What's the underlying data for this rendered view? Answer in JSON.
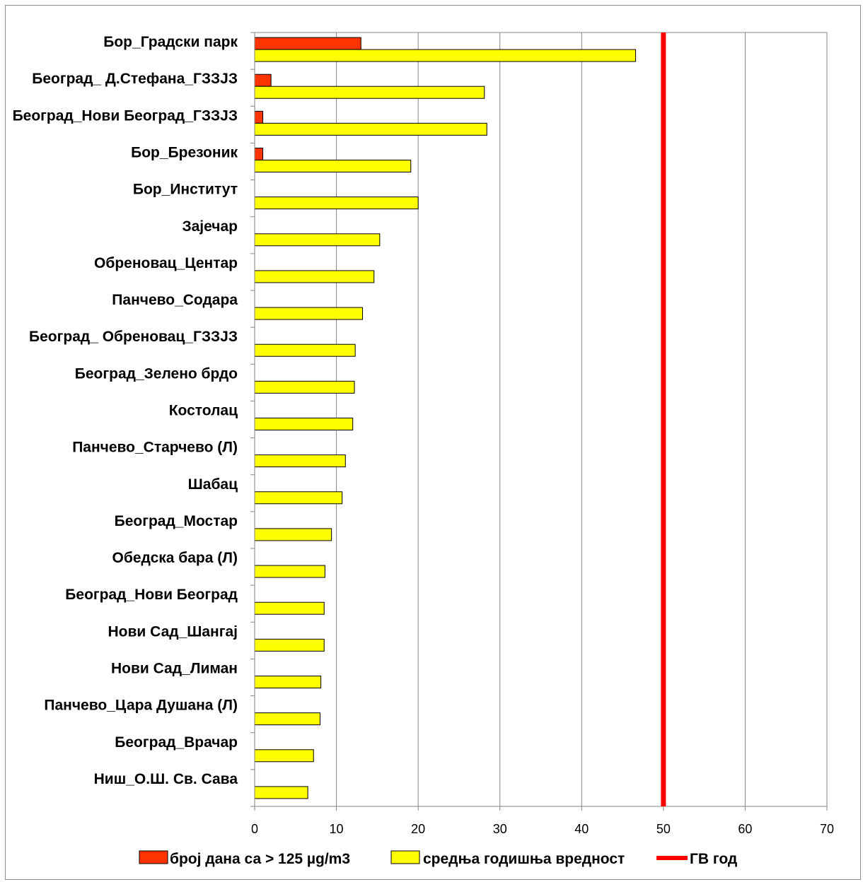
{
  "chart_data": {
    "type": "bar",
    "orientation": "horizontal",
    "categories": [
      "Бор_Градски парк",
      "Београд_ Д.Стефана_ГЗЗЈЗ",
      "Београд_Нови Београд_ГЗЗЈЗ",
      "Бор_Брезоник",
      "Бор_Институт",
      "Зајечар",
      "Обреновац_Центар",
      "Панчево_Содара",
      "Београд_ Обреновац_ГЗЗЈЗ",
      "Београд_Зелено брдо",
      "Костолац",
      "Панчево_Старчево (Л)",
      "Шабац",
      "Београд_Мостар",
      "Обедска бара (Л)",
      "Београд_Нови Београд",
      "Нови Сад_Шангај",
      "Нови Сад_Лиман",
      "Панчево_Цара Душана (Л)",
      "Београд_Врачар",
      "Ниш_О.Ш. Св. Сава"
    ],
    "series": [
      {
        "name": "број дана са  > 125 µg/m3",
        "color": "#FF3300",
        "values": [
          13,
          2,
          1,
          1,
          0,
          0,
          0,
          0,
          0,
          0,
          0,
          0,
          0,
          0,
          0,
          0,
          0,
          0,
          0,
          0,
          0
        ]
      },
      {
        "name": "средња годишња вредност",
        "color": "#FFFF00",
        "values": [
          46.6,
          28.1,
          28.4,
          19.1,
          20,
          15.3,
          14.6,
          13.2,
          12.3,
          12.2,
          12,
          11.1,
          10.7,
          9.4,
          8.6,
          8.5,
          8.5,
          8.1,
          8,
          7.2,
          6.5
        ]
      }
    ],
    "reference_line": {
      "name": "ГВ год",
      "value": 50,
      "color": "#FF0000"
    },
    "xlim": [
      0,
      70
    ],
    "xticks": [
      0,
      10,
      20,
      30,
      40,
      50,
      60,
      70
    ],
    "grid": "vertical",
    "legend": "bottom"
  }
}
